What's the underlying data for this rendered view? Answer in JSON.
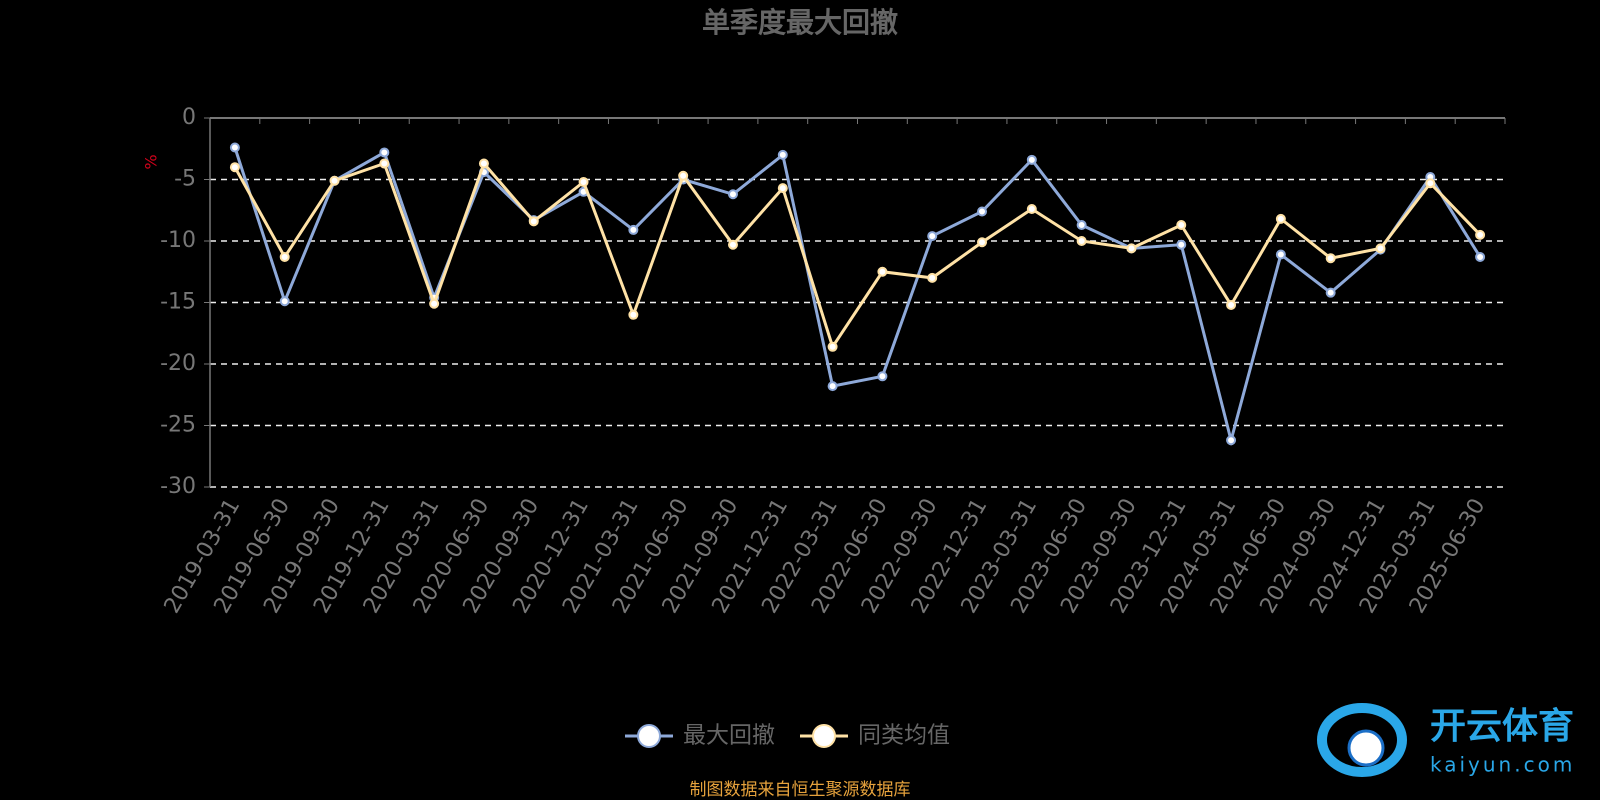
{
  "chart_data": {
    "type": "line",
    "title": "单季度最大回撤",
    "y_label": "%",
    "categories": [
      "2019-03-31",
      "2019-06-30",
      "2019-09-30",
      "2019-12-31",
      "2020-03-31",
      "2020-06-30",
      "2020-09-30",
      "2020-12-31",
      "2021-03-31",
      "2021-06-30",
      "2021-09-30",
      "2021-12-31",
      "2022-03-31",
      "2022-06-30",
      "2022-09-30",
      "2022-12-31",
      "2023-03-31",
      "2023-06-30",
      "2023-09-30",
      "2023-12-31",
      "2024-03-31",
      "2024-06-30",
      "2024-09-30",
      "2024-12-31",
      "2025-03-31",
      "2025-06-30"
    ],
    "series": [
      {
        "name": "最大回撤",
        "color": "#8ea9d9",
        "values": [
          -2.4,
          -14.9,
          -5.1,
          -2.8,
          -14.6,
          -4.4,
          -8.3,
          -6.0,
          -9.1,
          -5.0,
          -6.2,
          -3.0,
          -21.8,
          -21.0,
          -9.6,
          -7.6,
          -3.4,
          -8.7,
          -10.6,
          -10.3,
          -26.2,
          -11.1,
          -14.2,
          -10.7,
          -4.8,
          -11.3
        ]
      },
      {
        "name": "同类均值",
        "color": "#ffe2a6",
        "values": [
          -4.0,
          -11.3,
          -5.1,
          -3.7,
          -15.1,
          -3.7,
          -8.4,
          -5.2,
          -16.0,
          -4.7,
          -10.3,
          -5.7,
          -18.6,
          -12.5,
          -13.0,
          -10.1,
          -7.4,
          -10.0,
          -10.6,
          -8.7,
          -15.2,
          -8.2,
          -11.4,
          -10.6,
          -5.3,
          -9.5
        ]
      }
    ],
    "ylim": [
      -30,
      0
    ],
    "yticks": [
      0,
      -5,
      -10,
      -15,
      -20,
      -25,
      -30
    ],
    "grid": true,
    "legend": "bottom",
    "source": "制图数据来自恒生聚源数据库",
    "watermark": {
      "brand": "开云体育",
      "site": "kaiyun.com"
    }
  }
}
